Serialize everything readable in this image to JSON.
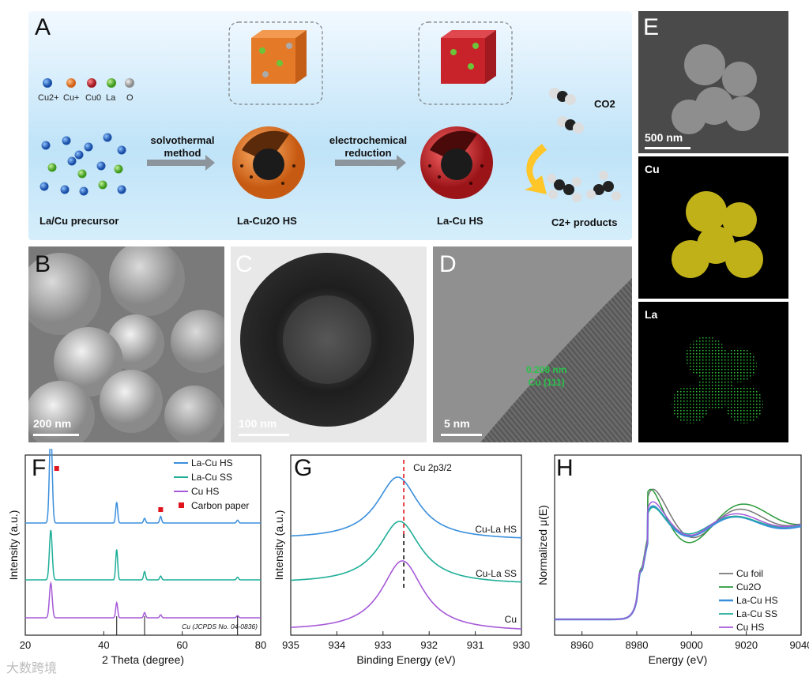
{
  "panels": {
    "A": "A",
    "B": "B",
    "C": "C",
    "D": "D",
    "E": "E",
    "F": "F",
    "G": "G",
    "H": "H"
  },
  "schematic": {
    "legend": [
      "Cu2+",
      "Cu+",
      "Cu0",
      "La",
      "O"
    ],
    "legend_colors": [
      "#1f66c4",
      "#f07a1e",
      "#c8222a",
      "#6cc43a",
      "#aaaaaa"
    ],
    "precursor_label": "La/Cu precursor",
    "step1_line1": "solvothermal",
    "step1_line2": "method",
    "intermediate_label": "La-Cu2O HS",
    "step2_line1": "electrochemical",
    "step2_line2": "reduction",
    "final_label": "La-Cu HS",
    "reactant": "CO2",
    "product": "C2+ products"
  },
  "micrographs": {
    "B_scale": "200 nm",
    "C_scale": "100 nm",
    "D_scale": "5 nm",
    "D_annot_1": "0.208 nm",
    "D_annot_2": "Cu (111)",
    "E_scale": "500 nm",
    "E_cu": "Cu",
    "E_la": "La"
  },
  "chart_data": [
    {
      "type": "line",
      "panel": "F",
      "xlabel": "2 Theta (degree)",
      "ylabel": "Intensity (a.u.)",
      "xlim": [
        20,
        80
      ],
      "xticks": [
        20,
        40,
        60,
        80
      ],
      "legend_position": "top-right",
      "series": [
        {
          "name": "La-Cu HS",
          "color": "#3a8fdc"
        },
        {
          "name": "La-Cu SS",
          "color": "#1fae98"
        },
        {
          "name": "Cu HS",
          "color": "#a65ad8"
        }
      ],
      "marker_legend": "Carbon paper",
      "reference_label": "Cu (JCPDS No. 04-0836)",
      "peaks": [
        26.5,
        43.3,
        50.4,
        54.5,
        74.1
      ],
      "reference_lines": [
        43.3,
        50.4,
        74.1
      ]
    },
    {
      "type": "line",
      "panel": "G",
      "xlabel": "Binding Energy (eV)",
      "ylabel": "Intensity (a.u.)",
      "xlim": [
        935,
        930
      ],
      "xticks": [
        935,
        934,
        933,
        932,
        931,
        930
      ],
      "annotation": "Cu 2p3/2",
      "series": [
        {
          "name": "Cu-La HS",
          "color": "#3a8fdc",
          "peak": 932.6
        },
        {
          "name": "Cu-La SS",
          "color": "#1fae98",
          "peak": 932.6
        },
        {
          "name": "Cu",
          "color": "#a65ad8",
          "peak": 932.6
        }
      ]
    },
    {
      "type": "line",
      "panel": "H",
      "xlabel": "Energy (eV)",
      "ylabel": "Normalized μ(E)",
      "xlim": [
        8950,
        9040
      ],
      "xticks": [
        8960,
        8980,
        9000,
        9020,
        9040
      ],
      "legend_position": "bottom-right",
      "series": [
        {
          "name": "Cu foil",
          "color": "#777777"
        },
        {
          "name": "Cu2O",
          "color": "#2a9a3a"
        },
        {
          "name": "La-Cu HS",
          "color": "#3a8fdc"
        },
        {
          "name": "La-Cu SS",
          "color": "#1fae98"
        },
        {
          "name": "Cu HS",
          "color": "#a65ad8"
        }
      ]
    }
  ],
  "watermark": "大数跨境"
}
